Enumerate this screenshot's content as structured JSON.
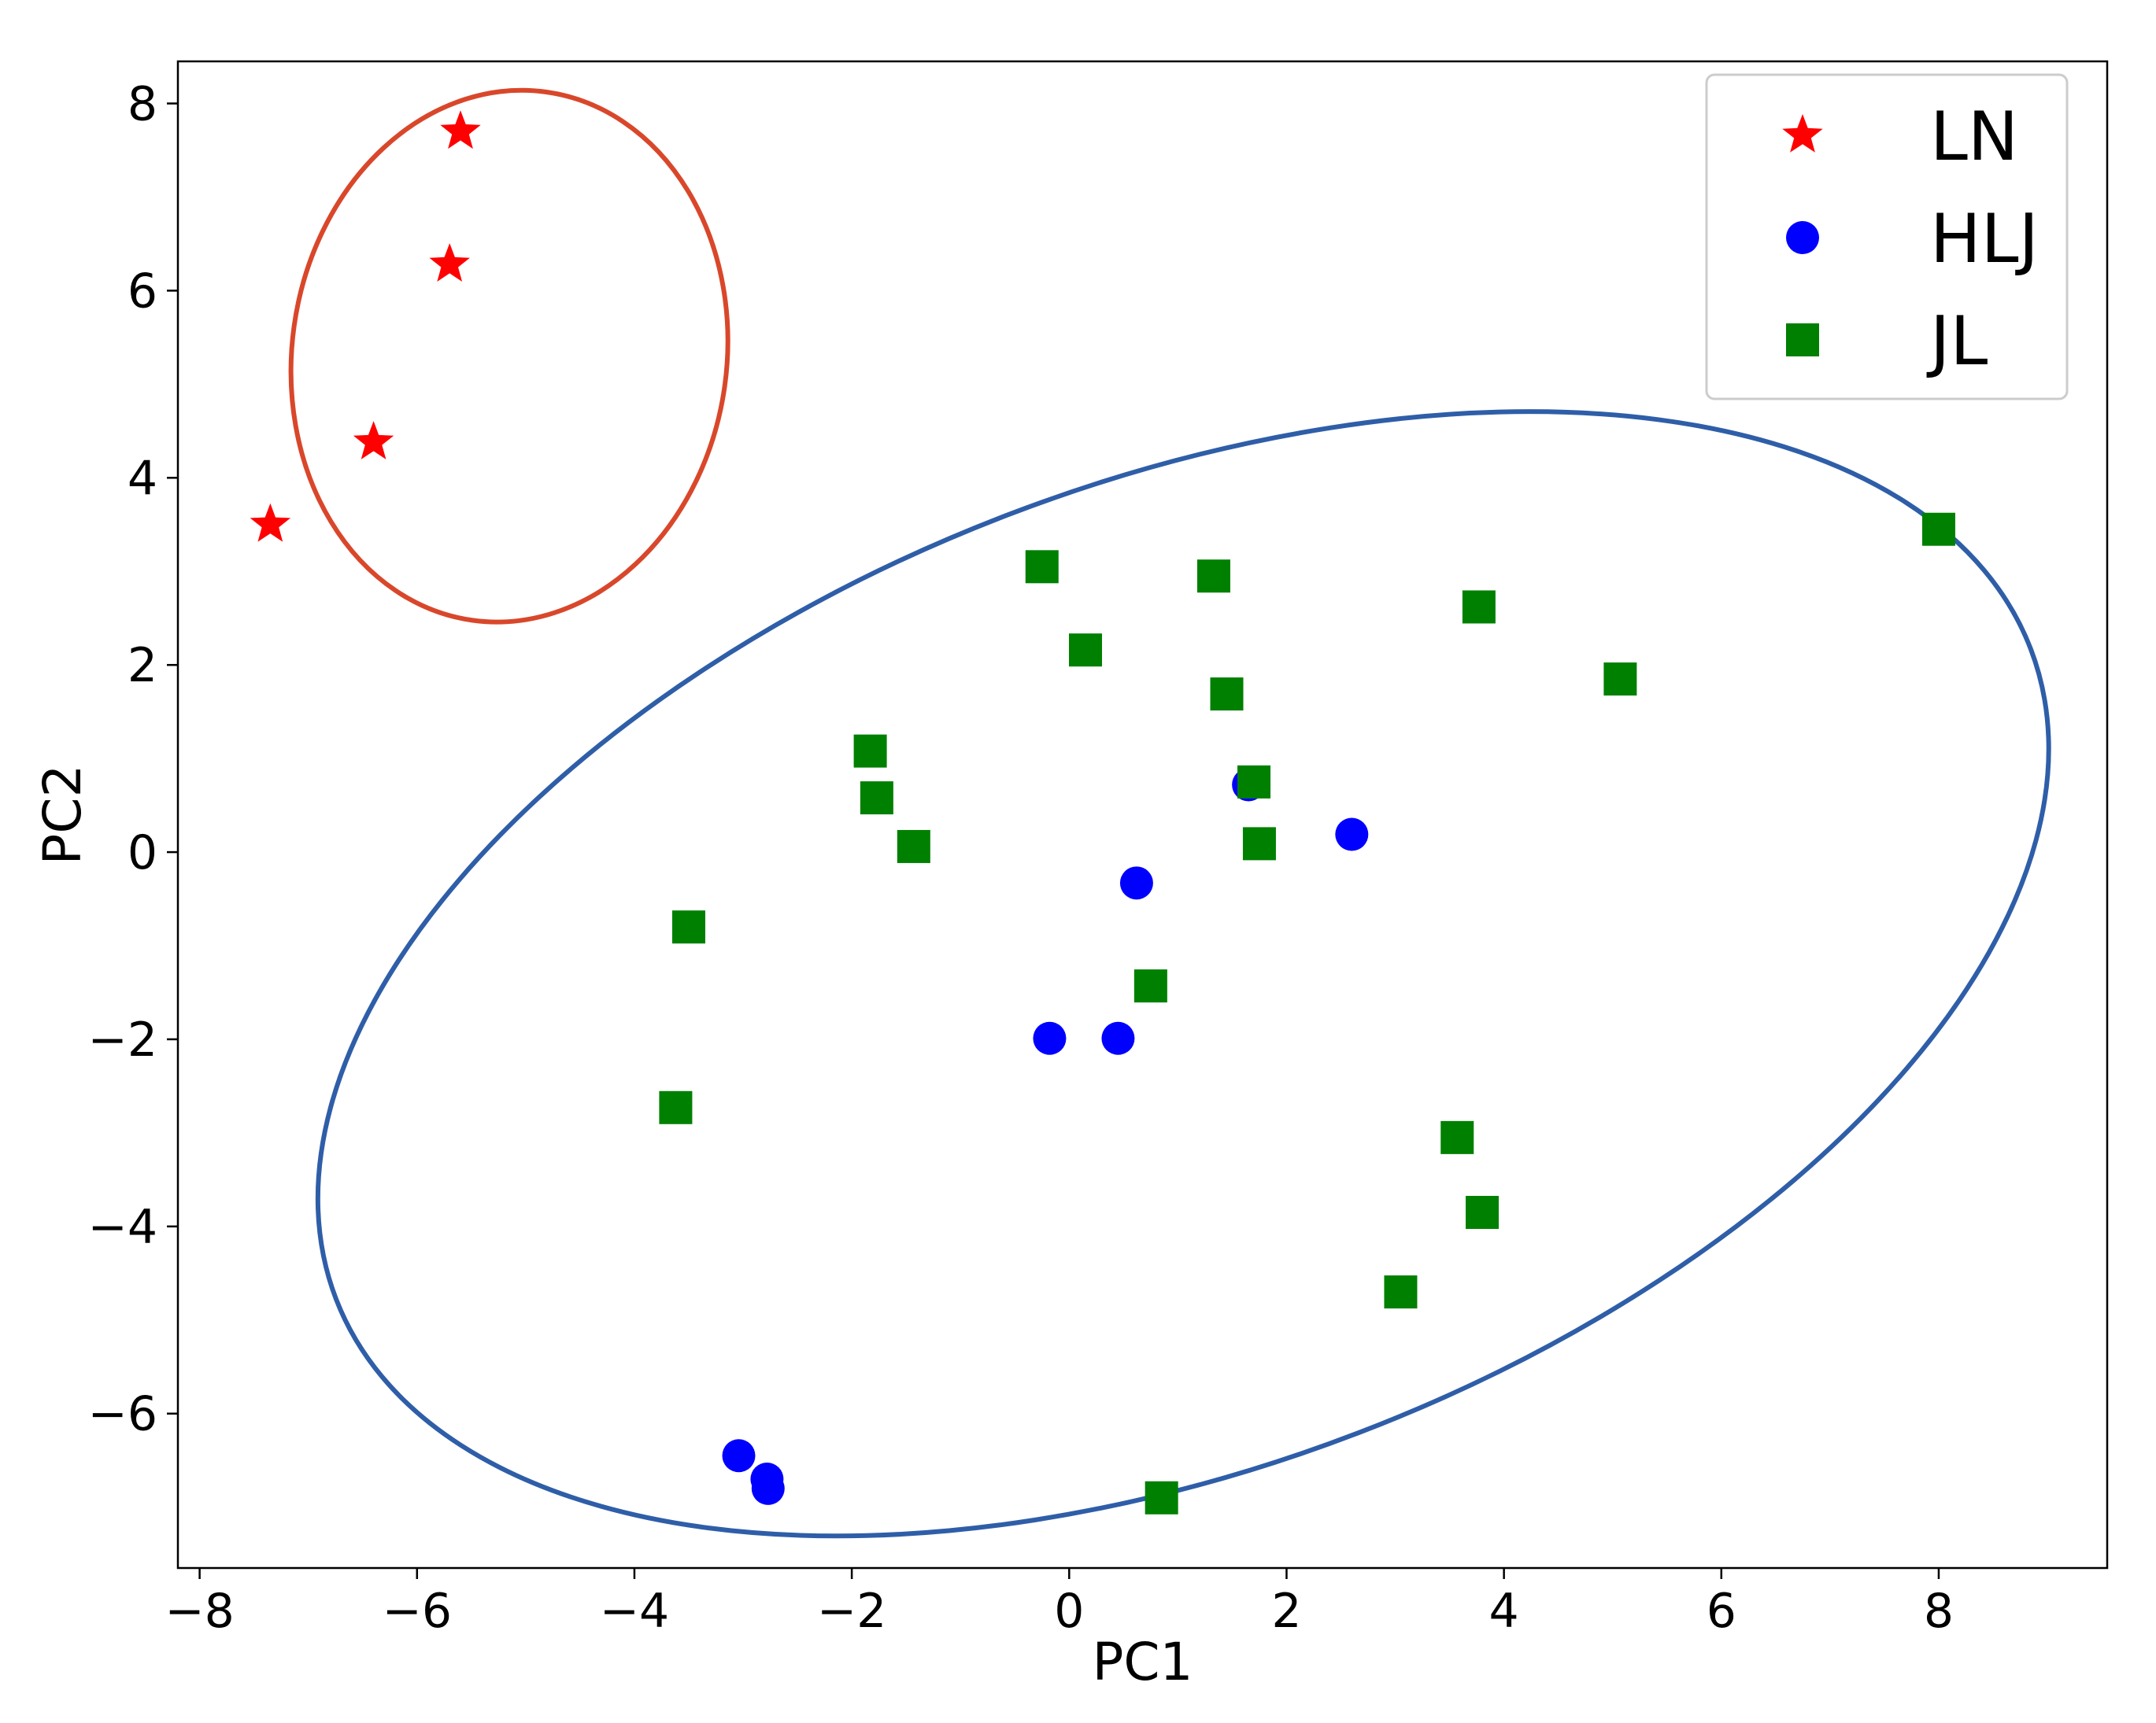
{
  "chart_data": {
    "type": "scatter",
    "xlabel": "PC1",
    "ylabel": "PC2",
    "xlim": [
      -8.2,
      9.55
    ],
    "ylim": [
      -7.65,
      8.45
    ],
    "xticks": [
      -8,
      -6,
      -4,
      -2,
      0,
      2,
      4,
      6,
      8
    ],
    "yticks": [
      -6,
      -4,
      -2,
      0,
      2,
      4,
      6,
      8
    ],
    "grid": false,
    "legend_position": "top-right",
    "series": [
      {
        "name": "LN",
        "color": "#ff0000",
        "marker": "star",
        "points": [
          [
            -5.6,
            7.7
          ],
          [
            -5.7,
            6.28
          ],
          [
            -6.4,
            4.38
          ],
          [
            -7.35,
            3.5
          ]
        ]
      },
      {
        "name": "HLJ",
        "color": "#0000ff",
        "marker": "circle",
        "points": [
          [
            1.65,
            0.72
          ],
          [
            2.6,
            0.19
          ],
          [
            0.62,
            -0.33
          ],
          [
            -0.18,
            -1.99
          ],
          [
            0.45,
            -1.99
          ],
          [
            -3.04,
            -6.45
          ],
          [
            -2.78,
            -6.7
          ],
          [
            -2.77,
            -6.8
          ]
        ]
      },
      {
        "name": "JL",
        "color": "#008000",
        "marker": "square",
        "points": [
          [
            8.0,
            3.45
          ],
          [
            -0.25,
            3.05
          ],
          [
            1.33,
            2.95
          ],
          [
            3.77,
            2.62
          ],
          [
            0.15,
            2.16
          ],
          [
            1.45,
            1.69
          ],
          [
            5.07,
            1.85
          ],
          [
            -1.83,
            1.08
          ],
          [
            -1.77,
            0.58
          ],
          [
            1.7,
            0.75
          ],
          [
            -1.43,
            0.06
          ],
          [
            1.75,
            0.09
          ],
          [
            -3.5,
            -0.8
          ],
          [
            0.75,
            -1.43
          ],
          [
            -3.62,
            -2.73
          ],
          [
            3.57,
            -3.05
          ],
          [
            3.8,
            -3.85
          ],
          [
            3.05,
            -4.7
          ],
          [
            0.85,
            -6.9
          ]
        ]
      }
    ],
    "ellipses": [
      {
        "color": "#d9472b",
        "center": [
          -5.15,
          5.3
        ],
        "semi_axes": [
          2.0,
          2.85
        ],
        "angle": -8
      },
      {
        "color": "#2f5ea8",
        "center": [
          1.05,
          -1.3
        ],
        "semi_axes": [
          8.35,
          5.25
        ],
        "angle": 21
      }
    ]
  }
}
